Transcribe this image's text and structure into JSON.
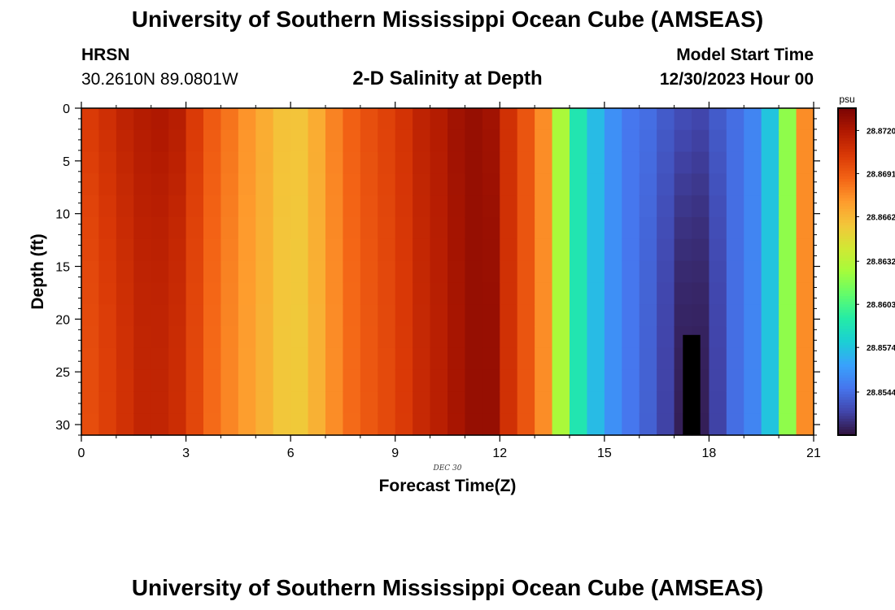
{
  "header": {
    "title": "University of Southern Mississippi Ocean Cube (AMSEAS)",
    "station": "HRSN",
    "coords": "30.2610N  89.0801W",
    "subtitle": "2-D Salinity at Depth",
    "model_start_label": "Model Start Time",
    "model_start_value": "12/30/2023 Hour 00"
  },
  "footer": {
    "title": "University of Southern Mississippi Ocean Cube (AMSEAS)"
  },
  "chart_data": {
    "type": "heatmap",
    "title": "2-D Salinity at Depth",
    "xlabel": "Forecast Time(Z)",
    "ylabel": "Depth (ft)",
    "date_label": "DEC 30",
    "x_ticks": [
      "0",
      "3",
      "6",
      "9",
      "12",
      "15",
      "18",
      "21"
    ],
    "y_ticks": [
      "0",
      "5",
      "10",
      "15",
      "20",
      "25",
      "30"
    ],
    "xlim": [
      0,
      21
    ],
    "ylim": [
      0,
      31
    ],
    "colorbar": {
      "unit": "psu",
      "tick_labels": [
        "28.8720",
        "28.8691",
        "28.8662",
        "28.8632",
        "28.8603",
        "28.8574",
        "28.8544"
      ],
      "tick_values": [
        28.872,
        28.8691,
        28.8662,
        28.8632,
        28.8603,
        28.8574,
        28.8544
      ],
      "min": 28.8515,
      "max": 28.8735
    },
    "colormap": [
      "#30123b",
      "#4145ab",
      "#4675ed",
      "#39a2fc",
      "#1bcfd4",
      "#24eca6",
      "#61fc6c",
      "#a4fc3b",
      "#d1e834",
      "#f3c63a",
      "#fe9b2d",
      "#f36315",
      "#d93806",
      "#b11901",
      "#7a0403"
    ],
    "x_times": [
      0.25,
      0.75,
      1.25,
      1.75,
      2.25,
      2.75,
      3.25,
      3.75,
      4.25,
      4.75,
      5.25,
      5.75,
      6.25,
      6.75,
      7.25,
      7.75,
      8.25,
      8.75,
      9.25,
      9.75,
      10.25,
      10.75,
      11.25,
      11.75,
      12.25,
      12.75,
      13.25,
      13.75,
      14.25,
      14.75,
      15.25,
      15.75,
      16.25,
      16.75,
      17.25,
      17.75,
      18.25,
      18.75,
      19.25,
      19.75,
      20.25,
      20.75
    ],
    "column_salinity_surface": [
      28.8703,
      28.8708,
      28.8714,
      28.8718,
      28.872,
      28.8717,
      28.8703,
      28.8691,
      28.8683,
      28.8674,
      28.8666,
      28.8658,
      28.8657,
      28.8666,
      28.8679,
      28.8689,
      28.8695,
      28.87,
      28.8706,
      28.8714,
      28.8718,
      28.8724,
      28.8727,
      28.8724,
      28.8707,
      28.8693,
      28.8676,
      28.8627,
      28.859,
      28.8571,
      28.8556,
      28.8547,
      28.8544,
      28.8538,
      28.8533,
      28.8531,
      28.8538,
      28.8544,
      28.8552,
      28.8574,
      28.862,
      28.8676
    ],
    "column_salinity_bottom": [
      28.8696,
      28.8701,
      28.8707,
      28.8713,
      28.8713,
      28.8709,
      28.8698,
      28.8686,
      28.8678,
      28.8671,
      28.8664,
      28.8656,
      28.8655,
      28.8664,
      28.8676,
      28.8686,
      28.8692,
      28.8697,
      28.8703,
      28.8711,
      28.8716,
      28.8722,
      28.8727,
      28.8727,
      28.8707,
      28.8693,
      28.8676,
      28.8627,
      28.859,
      28.8571,
      28.8556,
      28.8547,
      28.854,
      28.853,
      28.8519,
      28.8519,
      28.853,
      28.8544,
      28.8552,
      28.8574,
      28.862,
      28.8676
    ],
    "no_data_region": {
      "time_range": [
        17.25,
        17.75
      ],
      "depth_range": [
        21.5,
        31
      ]
    }
  }
}
